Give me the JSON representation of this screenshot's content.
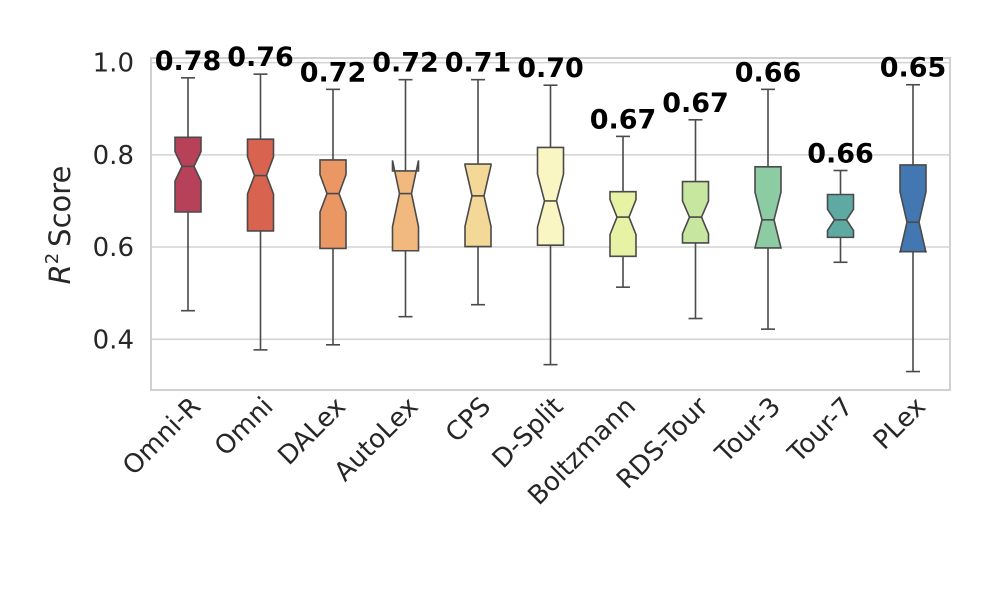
{
  "chart_data": {
    "type": "boxplot",
    "notched": true,
    "title": "",
    "xlabel": "",
    "ylabel": {
      "base": "R",
      "superscript": "2",
      "text": "Score"
    },
    "ylim": [
      0.29,
      1.01
    ],
    "yticks": [
      0.4,
      0.6,
      0.8,
      1.0
    ],
    "ytick_labels": [
      "0.4",
      "0.6",
      "0.8",
      "1.0"
    ],
    "grid": true,
    "categories": [
      "Omni-R",
      "Omni",
      "DALex",
      "AutoLex",
      "CPS",
      "D-Split",
      "Boltzmann",
      "RDS-Tour",
      "Tour-3",
      "Tour-7",
      "PLex"
    ],
    "boxes": [
      {
        "whisker_low": 0.462,
        "q1": 0.676,
        "median": 0.775,
        "q3": 0.838,
        "whisker_high": 0.967,
        "notch": [
          0.743,
          0.807
        ],
        "color": "#b8415a",
        "label": "0.78"
      },
      {
        "whisker_low": 0.377,
        "q1": 0.635,
        "median": 0.755,
        "q3": 0.834,
        "whisker_high": 0.975,
        "notch": [
          0.715,
          0.796
        ],
        "color": "#d8634f",
        "label": "0.76"
      },
      {
        "whisker_low": 0.388,
        "q1": 0.597,
        "median": 0.716,
        "q3": 0.789,
        "whisker_high": 0.942,
        "notch": [
          0.676,
          0.757
        ],
        "color": "#ea9763",
        "label": "0.72"
      },
      {
        "whisker_low": 0.449,
        "q1": 0.592,
        "median": 0.716,
        "q3": 0.765,
        "whisker_high": 0.963,
        "notch": [
          0.644,
          0.788
        ],
        "color": "#f2b97e",
        "label": "0.72"
      },
      {
        "whisker_low": 0.475,
        "q1": 0.601,
        "median": 0.711,
        "q3": 0.78,
        "whisker_high": 0.963,
        "notch": [
          0.645,
          0.777
        ],
        "color": "#f4d898",
        "label": "0.71"
      },
      {
        "whisker_low": 0.345,
        "q1": 0.604,
        "median": 0.7,
        "q3": 0.816,
        "whisker_high": 0.951,
        "notch": [
          0.643,
          0.758
        ],
        "color": "#faf6c3",
        "label": "0.70"
      },
      {
        "whisker_low": 0.513,
        "q1": 0.58,
        "median": 0.665,
        "q3": 0.72,
        "whisker_high": 0.84,
        "notch": [
          0.627,
          0.703
        ],
        "color": "#e7f2a4",
        "label": "0.67"
      },
      {
        "whisker_low": 0.445,
        "q1": 0.609,
        "median": 0.665,
        "q3": 0.742,
        "whisker_high": 0.876,
        "notch": [
          0.629,
          0.7
        ],
        "color": "#c7e6a0",
        "label": "0.67"
      },
      {
        "whisker_low": 0.422,
        "q1": 0.598,
        "median": 0.659,
        "q3": 0.774,
        "whisker_high": 0.942,
        "notch": [
          0.598,
          0.719
        ],
        "color": "#8dcba3",
        "label": "0.66"
      },
      {
        "whisker_low": 0.567,
        "q1": 0.621,
        "median": 0.659,
        "q3": 0.714,
        "whisker_high": 0.766,
        "notch": [
          0.636,
          0.682
        ],
        "color": "#5fa9a3",
        "label": "0.66"
      },
      {
        "whisker_low": 0.33,
        "q1": 0.59,
        "median": 0.654,
        "q3": 0.778,
        "whisker_high": 0.952,
        "notch": [
          0.588,
          0.72
        ],
        "color": "#4277b1",
        "label": "0.65"
      }
    ]
  }
}
